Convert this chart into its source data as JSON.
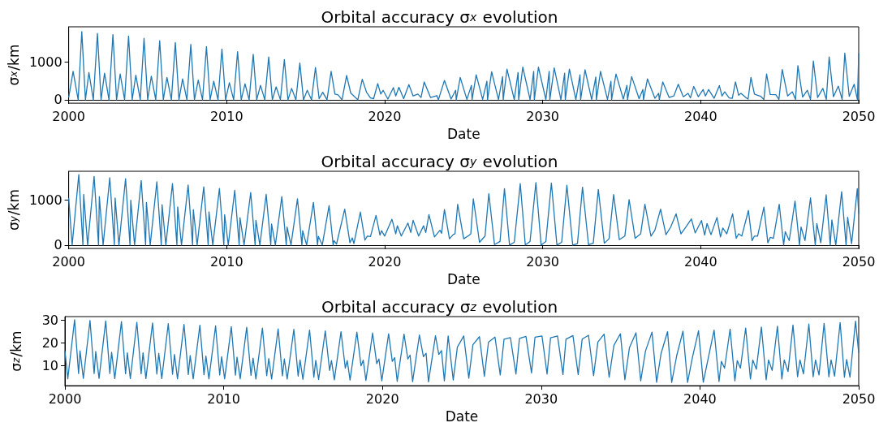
{
  "chart_data": [
    {
      "type": "line",
      "title": "Orbital accuracy σ$_{x}$ evolution",
      "xlabel": "Date",
      "ylabel": "σ$_{x}$/km",
      "color": "#1f77b4",
      "xlim": [
        2000,
        2050
      ],
      "xticks": [
        2000,
        2010,
        2020,
        2030,
        2040,
        2050
      ],
      "ylim": [
        -90,
        1925
      ],
      "yticks": [
        0,
        1000
      ],
      "x": [
        2000.0,
        2000.28,
        2000.6,
        2000.83,
        2001.06,
        2001.28,
        2001.56,
        2001.82,
        2002.05,
        2002.27,
        2002.55,
        2002.8,
        2003.03,
        2003.26,
        2003.54,
        2003.79,
        2004.02,
        2004.25,
        2004.53,
        2004.77,
        2005.0,
        2005.23,
        2005.51,
        2005.76,
        2005.99,
        2006.22,
        2006.5,
        2006.75,
        2006.98,
        2007.21,
        2007.48,
        2007.73,
        2007.96,
        2008.2,
        2008.47,
        2008.72,
        2008.95,
        2009.18,
        2009.45,
        2009.7,
        2009.93,
        2010.17,
        2010.44,
        2010.69,
        2010.92,
        2011.16,
        2011.42,
        2011.68,
        2011.9,
        2012.14,
        2012.41,
        2012.66,
        2012.89,
        2013.13,
        2013.4,
        2013.65,
        2013.88,
        2014.11,
        2014.38,
        2014.63,
        2014.86,
        2015.1,
        2015.37,
        2015.62,
        2015.85,
        2016.08,
        2016.35,
        2016.61,
        2016.85,
        2017.05,
        2017.3,
        2017.59,
        2017.85,
        2018.1,
        2018.3,
        2018.58,
        2018.85,
        2019.1,
        2019.3,
        2019.56,
        2019.75,
        2019.9,
        2020.2,
        2020.55,
        2020.7,
        2020.9,
        2021.2,
        2021.53,
        2021.8,
        2022.1,
        2022.3,
        2022.5,
        2022.9,
        2023.3,
        2023.4,
        2023.78,
        2024.2,
        2024.49,
        2024.53,
        2024.78,
        2025.2,
        2025.49,
        2025.53,
        2025.79,
        2026.2,
        2026.47,
        2026.51,
        2026.77,
        2027.2,
        2027.46,
        2027.5,
        2027.74,
        2028.2,
        2028.44,
        2028.48,
        2028.74,
        2029.2,
        2029.43,
        2029.47,
        2029.73,
        2030.2,
        2030.41,
        2030.45,
        2030.73,
        2031.15,
        2031.39,
        2031.43,
        2031.69,
        2032.1,
        2032.36,
        2032.4,
        2032.68,
        2033.1,
        2033.36,
        2033.4,
        2033.66,
        2034.1,
        2034.32,
        2034.36,
        2034.64,
        2035.1,
        2035.33,
        2035.37,
        2035.63,
        2036.1,
        2036.34,
        2036.38,
        2036.63,
        2037.1,
        2037.34,
        2037.38,
        2037.6,
        2038.0,
        2038.3,
        2038.58,
        2038.9,
        2039.2,
        2039.35,
        2039.56,
        2039.85,
        2040.15,
        2040.3,
        2040.5,
        2040.85,
        2041.18,
        2041.35,
        2041.52,
        2041.8,
        2042.0,
        2042.2,
        2042.4,
        2042.55,
        2042.85,
        2043.0,
        2043.18,
        2043.4,
        2043.6,
        2043.8,
        2044.0,
        2044.17,
        2044.4,
        2044.75,
        2044.95,
        2045.16,
        2045.5,
        2045.8,
        2046.0,
        2046.15,
        2046.45,
        2046.75,
        2046.95,
        2047.13,
        2047.4,
        2047.73,
        2047.95,
        2048.13,
        2048.4,
        2048.71,
        2048.95,
        2049.12,
        2049.4,
        2049.71,
        2049.92,
        2050.0
      ],
      "values": [
        60,
        750,
        0,
        1800,
        0,
        720,
        0,
        1750,
        0,
        700,
        0,
        1720,
        0,
        680,
        0,
        1680,
        0,
        650,
        0,
        1620,
        0,
        620,
        0,
        1560,
        0,
        590,
        0,
        1510,
        0,
        550,
        0,
        1460,
        0,
        520,
        0,
        1400,
        0,
        490,
        0,
        1340,
        0,
        450,
        0,
        1270,
        0,
        420,
        0,
        1200,
        0,
        380,
        0,
        1130,
        0,
        340,
        0,
        1060,
        0,
        300,
        0,
        970,
        0,
        250,
        0,
        850,
        30,
        200,
        0,
        750,
        150,
        130,
        0,
        640,
        180,
        80,
        0,
        540,
        200,
        50,
        30,
        430,
        150,
        250,
        20,
        320,
        100,
        330,
        30,
        400,
        100,
        150,
        60,
        470,
        60,
        110,
        0,
        510,
        20,
        250,
        0,
        590,
        10,
        380,
        0,
        660,
        10,
        490,
        0,
        740,
        5,
        610,
        0,
        810,
        5,
        720,
        0,
        860,
        5,
        750,
        0,
        860,
        5,
        750,
        0,
        840,
        5,
        700,
        0,
        810,
        5,
        660,
        0,
        790,
        5,
        600,
        0,
        750,
        10,
        490,
        0,
        680,
        20,
        380,
        0,
        610,
        30,
        270,
        0,
        550,
        40,
        170,
        0,
        470,
        60,
        100,
        410,
        80,
        170,
        50,
        350,
        80,
        270,
        100,
        270,
        40,
        375,
        100,
        210,
        50,
        40,
        470,
        120,
        170,
        60,
        20,
        590,
        150,
        120,
        90,
        10,
        680,
        140,
        135,
        10,
        800,
        100,
        210,
        10,
        900,
        70,
        250,
        10,
        1020,
        60,
        300,
        10,
        1130,
        80,
        360,
        10,
        1230,
        90,
        410,
        0,
        1230
      ]
    },
    {
      "type": "line",
      "title": "Orbital accuracy σ$_{y}$ evolution",
      "xlabel": "Date",
      "ylabel": "σ$_{y}$/km",
      "color": "#1f77b4",
      "xlim": [
        2000,
        2050
      ],
      "xticks": [
        2000,
        2010,
        2020,
        2030,
        2040,
        2050
      ],
      "ylim": [
        -77,
        1645
      ],
      "yticks": [
        0,
        1000
      ],
      "x": [
        2000.0,
        2000.22,
        2000.64,
        2000.9,
        2000.95,
        2001.2,
        2001.61,
        2001.89,
        2001.94,
        2002.18,
        2002.6,
        2002.89,
        2002.94,
        2003.18,
        2003.6,
        2003.88,
        2003.93,
        2004.17,
        2004.59,
        2004.87,
        2004.92,
        2005.16,
        2005.58,
        2005.86,
        2005.91,
        2006.15,
        2006.57,
        2006.85,
        2006.9,
        2007.14,
        2007.56,
        2007.84,
        2007.89,
        2008.13,
        2008.55,
        2008.83,
        2008.88,
        2009.12,
        2009.54,
        2009.82,
        2009.87,
        2010.1,
        2010.51,
        2010.79,
        2010.84,
        2011.1,
        2011.52,
        2011.8,
        2011.85,
        2012.1,
        2012.5,
        2012.79,
        2012.84,
        2013.08,
        2013.49,
        2013.77,
        2013.82,
        2014.07,
        2014.48,
        2014.76,
        2014.81,
        2015.06,
        2015.49,
        2015.75,
        2015.8,
        2016.05,
        2016.48,
        2016.74,
        2016.79,
        2016.95,
        2017.47,
        2017.8,
        2017.95,
        2018.05,
        2018.46,
        2018.75,
        2018.9,
        2019.1,
        2019.45,
        2019.7,
        2019.8,
        2020.0,
        2020.46,
        2020.7,
        2020.8,
        2021.05,
        2021.47,
        2021.65,
        2021.8,
        2022.15,
        2022.46,
        2022.6,
        2022.8,
        2023.15,
        2023.5,
        2023.6,
        2023.78,
        2024.1,
        2024.35,
        2024.45,
        2024.62,
        2025.0,
        2025.35,
        2025.45,
        2025.61,
        2026.0,
        2026.35,
        2026.59,
        2026.95,
        2027.3,
        2027.58,
        2027.9,
        2028.2,
        2028.58,
        2028.9,
        2029.2,
        2029.57,
        2029.9,
        2030.2,
        2030.55,
        2030.9,
        2031.2,
        2031.53,
        2031.9,
        2032.2,
        2032.52,
        2032.9,
        2033.2,
        2033.52,
        2033.9,
        2034.2,
        2034.49,
        2034.85,
        2035.2,
        2035.47,
        2035.85,
        2036.2,
        2036.47,
        2036.85,
        2037.1,
        2037.46,
        2037.8,
        2038.1,
        2038.44,
        2038.75,
        2039.1,
        2039.41,
        2039.65,
        2040.05,
        2040.25,
        2040.4,
        2040.65,
        2041.03,
        2041.25,
        2041.4,
        2041.65,
        2042.02,
        2042.25,
        2042.4,
        2042.6,
        2043.02,
        2043.25,
        2043.4,
        2043.6,
        2044.0,
        2044.25,
        2044.4,
        2044.6,
        2044.97,
        2045.25,
        2045.35,
        2045.6,
        2045.97,
        2046.25,
        2046.35,
        2046.6,
        2046.95,
        2047.25,
        2047.35,
        2047.6,
        2047.94,
        2048.2,
        2048.3,
        2048.55,
        2048.92,
        2049.2,
        2049.3,
        2049.55,
        2049.91,
        2050.0
      ],
      "values": [
        1050,
        0,
        1570,
        0,
        1130,
        0,
        1530,
        0,
        1080,
        0,
        1500,
        0,
        1050,
        0,
        1480,
        0,
        1000,
        0,
        1440,
        0,
        950,
        0,
        1410,
        0,
        900,
        0,
        1370,
        0,
        850,
        0,
        1340,
        0,
        790,
        0,
        1300,
        0,
        740,
        0,
        1260,
        0,
        680,
        0,
        1220,
        0,
        610,
        0,
        1170,
        0,
        550,
        0,
        1130,
        0,
        470,
        0,
        1080,
        0,
        400,
        0,
        1030,
        0,
        320,
        0,
        950,
        0,
        195,
        0,
        880,
        0,
        100,
        20,
        800,
        50,
        160,
        30,
        735,
        110,
        200,
        190,
        660,
        220,
        320,
        200,
        575,
        250,
        430,
        200,
        490,
        280,
        550,
        200,
        430,
        280,
        680,
        180,
        330,
        260,
        790,
        140,
        240,
        250,
        907,
        140,
        220,
        250,
        1033,
        60,
        200,
        1146,
        10,
        80,
        1258,
        0,
        60,
        1370,
        0,
        80,
        1395,
        0,
        80,
        1382,
        0,
        60,
        1333,
        0,
        30,
        1289,
        10,
        40,
        1240,
        40,
        140,
        1127,
        120,
        200,
        1015,
        150,
        250,
        908,
        200,
        330,
        802,
        230,
        400,
        696,
        250,
        420,
        583,
        270,
        546,
        220,
        480,
        230,
        615,
        180,
        380,
        250,
        696,
        150,
        250,
        200,
        771,
        100,
        200,
        200,
        846,
        50,
        170,
        150,
        908,
        0,
        300,
        100,
        983,
        0,
        400,
        100,
        1052,
        0,
        480,
        50,
        1120,
        0,
        560,
        0,
        1190,
        0,
        620,
        30,
        1258,
        700
      ]
    },
    {
      "type": "line",
      "title": "Orbital accuracy σ$_{z}$ evolution",
      "xlabel": "Date",
      "ylabel": "σ$_{z}$/km",
      "color": "#1f77b4",
      "xlim": [
        2000,
        2050
      ],
      "xticks": [
        2000,
        2010,
        2020,
        2030,
        2040,
        2050
      ],
      "ylim": [
        1.3,
        31.6
      ],
      "yticks": [
        10,
        20,
        30
      ],
      "x": [
        2000.0,
        2000.18,
        2000.61,
        2000.86,
        2000.95,
        2001.16,
        2001.58,
        2001.84,
        2001.94,
        2002.15,
        2002.57,
        2002.83,
        2002.94,
        2003.14,
        2003.56,
        2003.82,
        2003.93,
        2004.12,
        2004.53,
        2004.8,
        2004.92,
        2005.1,
        2005.52,
        2005.79,
        2005.91,
        2006.1,
        2006.51,
        2006.78,
        2006.9,
        2007.09,
        2007.5,
        2007.77,
        2007.89,
        2008.08,
        2008.5,
        2008.76,
        2008.88,
        2009.07,
        2009.49,
        2009.75,
        2009.87,
        2010.06,
        2010.48,
        2010.74,
        2010.84,
        2011.04,
        2011.45,
        2011.72,
        2011.85,
        2012.03,
        2012.44,
        2012.71,
        2012.84,
        2013.02,
        2013.43,
        2013.7,
        2013.82,
        2014.0,
        2014.42,
        2014.69,
        2014.81,
        2014.99,
        2015.41,
        2015.68,
        2015.8,
        2015.98,
        2016.4,
        2016.67,
        2016.79,
        2016.97,
        2017.39,
        2017.66,
        2017.78,
        2017.96,
        2018.39,
        2018.65,
        2018.79,
        2018.96,
        2019.38,
        2019.64,
        2019.78,
        2019.96,
        2020.39,
        2020.62,
        2020.77,
        2020.93,
        2021.36,
        2021.6,
        2021.74,
        2021.9,
        2022.33,
        2022.58,
        2022.75,
        2022.9,
        2023.34,
        2023.55,
        2023.72,
        2023.9,
        2024.14,
        2024.46,
        2024.72,
        2025.12,
        2025.44,
        2025.7,
        2026.11,
        2026.42,
        2026.68,
        2027.09,
        2027.42,
        2027.66,
        2028.06,
        2028.41,
        2028.63,
        2029.04,
        2029.39,
        2029.61,
        2030.05,
        2030.37,
        2030.59,
        2031.03,
        2031.37,
        2031.56,
        2032.0,
        2032.33,
        2032.58,
        2032.98,
        2033.3,
        2033.57,
        2033.96,
        2034.28,
        2034.58,
        2034.99,
        2035.27,
        2035.56,
        2035.97,
        2036.27,
        2036.57,
        2036.98,
        2037.27,
        2037.55,
        2037.96,
        2038.22,
        2038.54,
        2038.93,
        2039.22,
        2039.52,
        2039.91,
        2040.21,
        2040.5,
        2040.89,
        2041.2,
        2041.35,
        2041.55,
        2041.9,
        2042.2,
        2042.35,
        2042.55,
        2042.88,
        2043.18,
        2043.33,
        2043.55,
        2043.87,
        2044.17,
        2044.32,
        2044.55,
        2044.88,
        2045.16,
        2045.31,
        2045.55,
        2045.86,
        2046.15,
        2046.3,
        2046.52,
        2046.86,
        2047.13,
        2047.28,
        2047.5,
        2047.82,
        2048.12,
        2048.26,
        2048.48,
        2048.83,
        2049.1,
        2049.24,
        2049.45,
        2049.8,
        2050.0
      ],
      "values": [
        16.6,
        4.3,
        30.2,
        6.6,
        16.6,
        4.5,
        29.9,
        6.6,
        16.3,
        4.5,
        29.7,
        6.6,
        16,
        4.4,
        29.4,
        6.5,
        15.7,
        4.4,
        29.1,
        6.5,
        15.7,
        4.4,
        28.8,
        6.4,
        15.5,
        4.4,
        28.5,
        6.3,
        15,
        4.3,
        28.2,
        6.2,
        14.5,
        4.3,
        27.8,
        6.1,
        14.3,
        4.3,
        27.5,
        6,
        14,
        4.3,
        27.2,
        5.9,
        13.8,
        4.3,
        26.9,
        5.8,
        13.4,
        4.2,
        26.6,
        5.7,
        13.2,
        4.2,
        26.2,
        5.6,
        13,
        4.2,
        26,
        5.5,
        12.6,
        4.1,
        25.7,
        5,
        12.4,
        4,
        25.3,
        8,
        12.3,
        3.9,
        25,
        9,
        12.3,
        3.8,
        24.8,
        10,
        12.5,
        3.6,
        24.4,
        11,
        13,
        3.4,
        24.1,
        12,
        13.6,
        3.2,
        23.9,
        13,
        14.7,
        3.1,
        23.5,
        14,
        15.5,
        3,
        23.2,
        15,
        16.7,
        3.4,
        23.1,
        3.8,
        18.2,
        23.1,
        4.6,
        19.3,
        22.8,
        5.4,
        20.4,
        22.6,
        6,
        21.7,
        22.4,
        6.4,
        22,
        22.9,
        6.9,
        22.6,
        23.1,
        6.4,
        22.3,
        23.1,
        6.2,
        21.7,
        23.3,
        6.2,
        21.7,
        23.4,
        5.7,
        20.4,
        23.9,
        5,
        19,
        24.1,
        3.9,
        18,
        24.5,
        3.4,
        16.5,
        24.8,
        2.8,
        15.4,
        25,
        2.7,
        14.6,
        25.2,
        2.7,
        13.5,
        25.4,
        2.8,
        12.6,
        25.7,
        3.1,
        12,
        9,
        26.1,
        3.4,
        12.3,
        9,
        26.6,
        4.2,
        12.6,
        8.5,
        27,
        3.9,
        12.6,
        8,
        27.4,
        4.2,
        12.6,
        7.5,
        27.9,
        5.2,
        12.6,
        6.5,
        28.3,
        5.2,
        12.6,
        6,
        28.6,
        5.2,
        12.6,
        5.5,
        29,
        5,
        12.8,
        5,
        29.6,
        15.7
      ]
    }
  ]
}
